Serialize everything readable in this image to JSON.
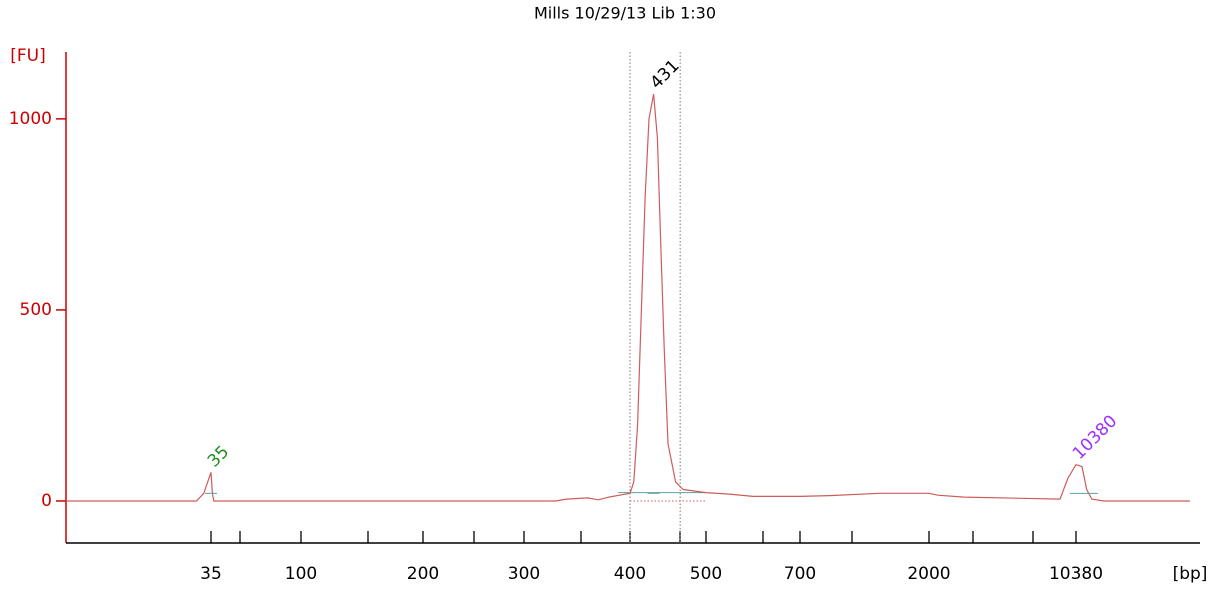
{
  "chart_data": {
    "type": "line",
    "title": "Mills 10/29/13 Lib 1:30",
    "ylabel": "[FU]",
    "xlabel": "[bp]",
    "x": [
      15,
      33,
      34,
      35,
      36,
      37,
      300,
      330,
      340,
      360,
      370,
      380,
      390,
      400,
      405,
      410,
      415,
      420,
      425,
      431,
      436,
      440,
      445,
      450,
      460,
      470,
      500,
      550,
      600,
      700,
      1000,
      1500,
      2000,
      2500,
      4000,
      9468,
      9924,
      10380,
      10728,
      11000,
      11300,
      12000,
      17000
    ],
    "series": [
      {
        "name": "Mills 10/29/13 Lib 1:30",
        "color": "#cd5c5c",
        "values": [
          0,
          0,
          20,
          75,
          20,
          0,
          0,
          0,
          5,
          8,
          3,
          10,
          15,
          20,
          50,
          200,
          500,
          800,
          1000,
          1065,
          950,
          700,
          400,
          150,
          50,
          30,
          22,
          18,
          12,
          12,
          14,
          20,
          20,
          15,
          10,
          5,
          60,
          95,
          90,
          30,
          5,
          0,
          0
        ]
      }
    ],
    "peaks": [
      {
        "x": 35,
        "y": 75,
        "color": "#228b22"
      },
      {
        "x": 431,
        "y": 1065,
        "color": "#000000"
      },
      {
        "x": 10380,
        "y": 95,
        "color": "#9b30ff"
      }
    ],
    "region": [
      400,
      466
    ],
    "xlim": [
      15,
      17000
    ],
    "xticks": [
      35,
      100,
      200,
      300,
      400,
      500,
      700,
      2000,
      10380
    ],
    "ylim": [
      -110,
      1175
    ],
    "yticks": [
      0,
      500,
      1000
    ],
    "axis_color": "#cc0000"
  }
}
